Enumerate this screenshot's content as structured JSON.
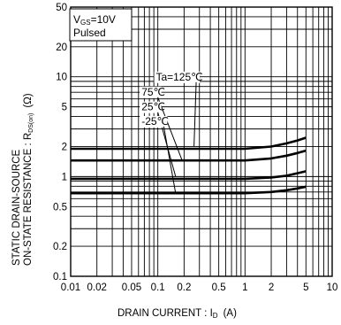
{
  "chart_data": {
    "type": "line",
    "x_scale": "log",
    "y_scale": "log",
    "xlim": [
      0.01,
      10
    ],
    "ylim": [
      0.1,
      50
    ],
    "xlabel": "DRAIN CURRENT : I",
    "xlabel_sub": "D",
    "xlabel_unit": "(A)",
    "ylabel_line1": "STATIC DRAIN-SOURCE",
    "ylabel_line2": "ON-STATE RESISTANCE : R",
    "ylabel_sub": "DS(on)",
    "ylabel_unit": "(Ω)",
    "grid": true,
    "x_ticks": [
      {
        "v": 0.01,
        "label": "0.01"
      },
      {
        "v": 0.02,
        "label": "0.02"
      },
      {
        "v": 0.05,
        "label": "0.05"
      },
      {
        "v": 0.1,
        "label": "0.1"
      },
      {
        "v": 0.2,
        "label": "0.2"
      },
      {
        "v": 0.5,
        "label": "0.5"
      },
      {
        "v": 1,
        "label": "1"
      },
      {
        "v": 2,
        "label": "2"
      },
      {
        "v": 5,
        "label": "5"
      },
      {
        "v": 10,
        "label": "10"
      }
    ],
    "y_ticks": [
      {
        "v": 0.1,
        "label": "0.1"
      },
      {
        "v": 0.2,
        "label": "0.2"
      },
      {
        "v": 0.5,
        "label": "0.5"
      },
      {
        "v": 1,
        "label": "1"
      },
      {
        "v": 2,
        "label": "2"
      },
      {
        "v": 5,
        "label": "5"
      },
      {
        "v": 10,
        "label": "10"
      },
      {
        "v": 20,
        "label": "20"
      },
      {
        "v": 50,
        "label": "50"
      }
    ],
    "conditions": {
      "vgs_symbol": "V",
      "vgs_sub": "GS",
      "vgs_value": "=10V",
      "mode": "Pulsed"
    },
    "series": [
      {
        "name": "Ta=125℃",
        "x": [
          0.01,
          0.3,
          1,
          2,
          3,
          4,
          5
        ],
        "y": [
          1.9,
          1.9,
          1.9,
          2.0,
          2.15,
          2.3,
          2.45
        ]
      },
      {
        "name": "75℃",
        "x": [
          0.01,
          0.3,
          1,
          2,
          3,
          4,
          5
        ],
        "y": [
          1.45,
          1.45,
          1.45,
          1.52,
          1.62,
          1.72,
          1.82
        ]
      },
      {
        "name": "25℃",
        "x": [
          0.01,
          0.3,
          1,
          2,
          3,
          4,
          5
        ],
        "y": [
          0.95,
          0.95,
          0.95,
          0.98,
          1.02,
          1.08,
          1.13
        ]
      },
      {
        "name": "-25℃",
        "x": [
          0.01,
          0.3,
          1,
          2,
          3,
          4,
          5
        ],
        "y": [
          0.68,
          0.68,
          0.68,
          0.7,
          0.73,
          0.76,
          0.79
        ]
      }
    ],
    "callouts": [
      {
        "label": "Ta=125℃",
        "x": 0.095,
        "y": 9.2,
        "to": [
          0.26,
          2.0
        ]
      },
      {
        "label": "75℃",
        "x": 0.065,
        "y": 6.5,
        "to": [
          0.19,
          1.45
        ]
      },
      {
        "label": "25℃",
        "x": 0.065,
        "y": 4.6,
        "to": [
          0.16,
          1.0
        ]
      },
      {
        "label": "-25℃",
        "x": 0.065,
        "y": 3.3,
        "to": [
          0.16,
          0.68
        ]
      }
    ]
  }
}
